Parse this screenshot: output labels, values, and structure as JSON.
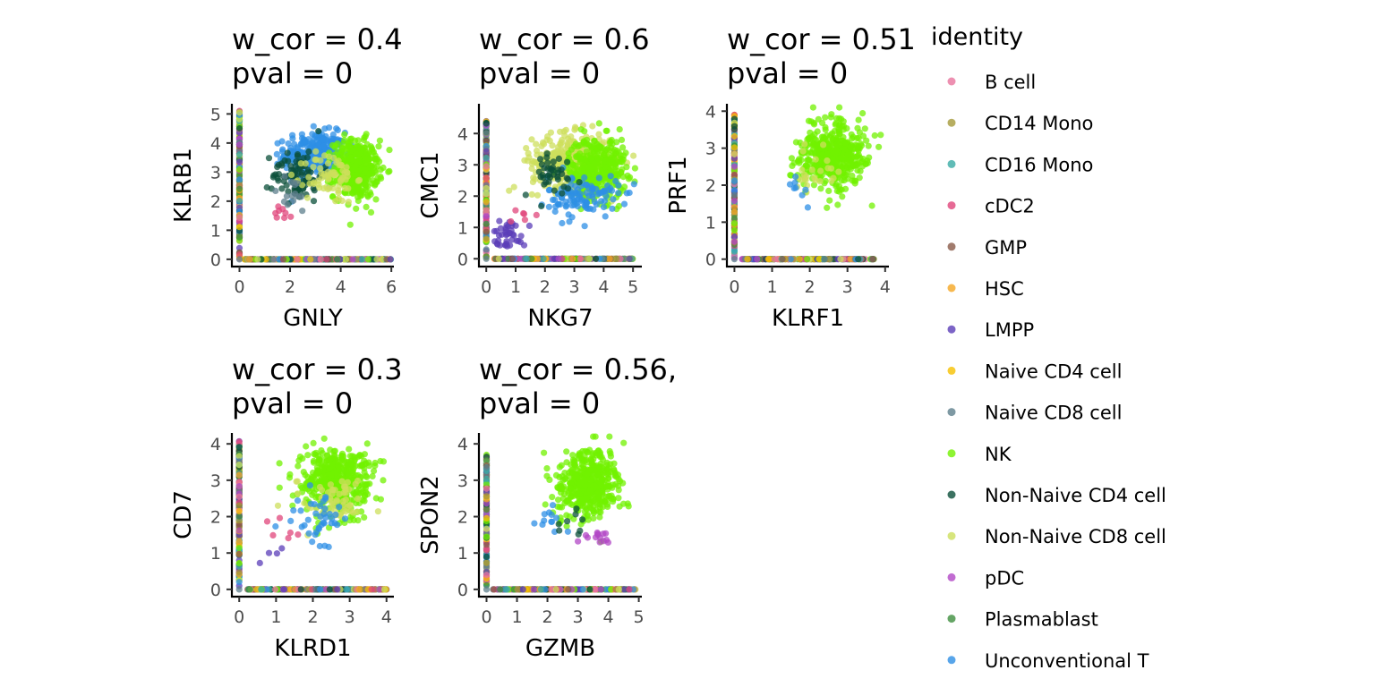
{
  "legend": {
    "title": "identity",
    "placement": "right",
    "entries": [
      {
        "label": "B cell",
        "color": "#E8749E"
      },
      {
        "label": "CD14 Mono",
        "color": "#A59A3A"
      },
      {
        "label": "CD16 Mono",
        "color": "#39ABA5"
      },
      {
        "label": "cDC2",
        "color": "#E0457B"
      },
      {
        "label": "GMP",
        "color": "#8A5A48"
      },
      {
        "label": "HSC",
        "color": "#F5A623"
      },
      {
        "label": "LMPP",
        "color": "#5B3DB8"
      },
      {
        "label": "Naive CD4 cell",
        "color": "#F6C100"
      },
      {
        "label": "Naive CD8 cell",
        "color": "#5E7F8C"
      },
      {
        "label": "NK",
        "color": "#72F100"
      },
      {
        "label": "Non-Naive CD4 cell",
        "color": "#0B4F3A"
      },
      {
        "label": "Non-Naive CD8 cell",
        "color": "#CDDF5C"
      },
      {
        "label": "pDC",
        "color": "#B247C6"
      },
      {
        "label": "Plasmablast",
        "color": "#3E8F3E"
      },
      {
        "label": "Unconventional T",
        "color": "#2E8FE5"
      }
    ]
  },
  "chart_data": [
    {
      "type": "scatter",
      "title_lines": [
        "w_cor = 0.4",
        "pval = 0"
      ],
      "xlabel": "GNLY",
      "ylabel": "KLRB1",
      "xlim": [
        -0.3,
        6.1
      ],
      "ylim": [
        -0.25,
        5.35
      ],
      "xticks": [
        0,
        2,
        4,
        6
      ],
      "yticks": [
        0,
        1,
        2,
        3,
        4,
        5
      ],
      "clusters": [
        {
          "id": "Unconventional T",
          "cx": 3.0,
          "cy": 3.6,
          "rx": 1.1,
          "ry": 0.7,
          "n": 320
        },
        {
          "id": "NK",
          "cx": 4.6,
          "cy": 3.1,
          "rx": 0.8,
          "ry": 0.9,
          "n": 420
        },
        {
          "id": "Non-Naive CD4 cell",
          "cx": 2.3,
          "cy": 2.9,
          "rx": 0.9,
          "ry": 0.8,
          "n": 90
        },
        {
          "id": "Non-Naive CD8 cell",
          "cx": 3.6,
          "cy": 2.8,
          "rx": 0.9,
          "ry": 0.8,
          "n": 70
        },
        {
          "id": "cDC2",
          "cx": 1.6,
          "cy": 1.6,
          "rx": 0.6,
          "ry": 0.5,
          "n": 8
        },
        {
          "id": "Naive CD8 cell",
          "cx": 2.0,
          "cy": 2.2,
          "rx": 0.8,
          "ry": 0.6,
          "n": 15
        }
      ],
      "xzero": {
        "max": 6.0,
        "n": 260
      },
      "yzero": {
        "max": 5.1,
        "n": 220
      }
    },
    {
      "type": "scatter",
      "title_lines": [
        "w_cor = 0.6",
        "pval = 0"
      ],
      "xlabel": "NKG7",
      "ylabel": "CMC1",
      "xlim": [
        -0.25,
        5.3
      ],
      "ylim": [
        -0.25,
        4.95
      ],
      "xticks": [
        0,
        1,
        2,
        3,
        4,
        5
      ],
      "yticks": [
        0,
        1,
        2,
        3,
        4
      ],
      "clusters": [
        {
          "id": "Non-Naive CD8 cell",
          "cx": 2.9,
          "cy": 3.1,
          "rx": 1.2,
          "ry": 0.8,
          "n": 380
        },
        {
          "id": "NK",
          "cx": 3.8,
          "cy": 2.9,
          "rx": 0.9,
          "ry": 0.9,
          "n": 360
        },
        {
          "id": "Unconventional T",
          "cx": 3.3,
          "cy": 2.0,
          "rx": 1.1,
          "ry": 0.6,
          "n": 110
        },
        {
          "id": "LMPP",
          "cx": 0.8,
          "cy": 0.8,
          "rx": 0.5,
          "ry": 0.4,
          "n": 40
        },
        {
          "id": "Non-Naive CD4 cell",
          "cx": 2.2,
          "cy": 2.7,
          "rx": 0.9,
          "ry": 0.7,
          "n": 40
        },
        {
          "id": "cDC2",
          "cx": 1.1,
          "cy": 1.3,
          "rx": 0.4,
          "ry": 0.3,
          "n": 6
        }
      ],
      "xzero": {
        "max": 5.0,
        "n": 240
      },
      "yzero": {
        "max": 4.4,
        "n": 200
      }
    },
    {
      "type": "scatter",
      "title_lines": [
        "w_cor = 0.51",
        "pval = 0"
      ],
      "xlabel": "KLRF1",
      "ylabel": "PRF1",
      "xlim": [
        -0.2,
        4.1
      ],
      "ylim": [
        -0.2,
        4.2
      ],
      "xticks": [
        0,
        1,
        2,
        3,
        4
      ],
      "yticks": [
        0,
        1,
        2,
        3,
        4
      ],
      "clusters": [
        {
          "id": "NK",
          "cx": 2.6,
          "cy": 2.8,
          "rx": 0.8,
          "ry": 0.8,
          "n": 480
        },
        {
          "id": "Non-Naive CD8 cell",
          "cx": 2.1,
          "cy": 2.3,
          "rx": 0.6,
          "ry": 0.6,
          "n": 25
        },
        {
          "id": "Unconventional T",
          "cx": 1.6,
          "cy": 2.0,
          "rx": 0.4,
          "ry": 0.5,
          "n": 8
        }
      ],
      "xzero": {
        "max": 3.7,
        "n": 230
      },
      "yzero": {
        "max": 3.9,
        "n": 220
      }
    },
    {
      "type": "scatter",
      "title_lines": [
        "w_cor = 0.3",
        "pval = 0"
      ],
      "xlabel": "KLRD1",
      "ylabel": "CD7",
      "xlim": [
        -0.2,
        4.2
      ],
      "ylim": [
        -0.2,
        4.3
      ],
      "xticks": [
        0,
        1,
        2,
        3,
        4
      ],
      "yticks": [
        0,
        1,
        2,
        3,
        4
      ],
      "clusters": [
        {
          "id": "NK",
          "cx": 2.6,
          "cy": 3.0,
          "rx": 0.8,
          "ry": 0.8,
          "n": 460
        },
        {
          "id": "Non-Naive CD8 cell",
          "cx": 2.6,
          "cy": 2.4,
          "rx": 0.8,
          "ry": 0.6,
          "n": 60
        },
        {
          "id": "Unconventional T",
          "cx": 2.2,
          "cy": 2.0,
          "rx": 0.7,
          "ry": 0.6,
          "n": 40
        },
        {
          "id": "cDC2",
          "cx": 1.3,
          "cy": 1.5,
          "rx": 0.4,
          "ry": 0.5,
          "n": 6
        },
        {
          "id": "LMPP",
          "cx": 0.9,
          "cy": 0.9,
          "rx": 0.3,
          "ry": 0.3,
          "n": 4
        }
      ],
      "xzero": {
        "max": 4.0,
        "n": 240
      },
      "yzero": {
        "max": 4.1,
        "n": 220
      }
    },
    {
      "type": "scatter",
      "title_lines": [
        "w_cor = 0.56,",
        "pval = 0"
      ],
      "xlabel": "GZMB",
      "ylabel": "SPON2",
      "xlim": [
        -0.25,
        5.1
      ],
      "ylim": [
        -0.2,
        4.3
      ],
      "xticks": [
        0,
        1,
        2,
        3,
        4,
        5
      ],
      "yticks": [
        0,
        1,
        2,
        3,
        4
      ],
      "clusters": [
        {
          "id": "NK",
          "cx": 3.3,
          "cy": 2.9,
          "rx": 0.9,
          "ry": 0.8,
          "n": 450
        },
        {
          "id": "pDC",
          "cx": 3.7,
          "cy": 1.5,
          "rx": 0.5,
          "ry": 0.3,
          "n": 14
        },
        {
          "id": "Unconventional T",
          "cx": 2.1,
          "cy": 1.9,
          "rx": 0.5,
          "ry": 0.4,
          "n": 12
        },
        {
          "id": "Non-Naive CD4 cell",
          "cx": 2.6,
          "cy": 1.8,
          "rx": 0.6,
          "ry": 0.5,
          "n": 8
        }
      ],
      "xzero": {
        "max": 4.9,
        "n": 240
      },
      "yzero": {
        "max": 3.7,
        "n": 200
      }
    }
  ]
}
